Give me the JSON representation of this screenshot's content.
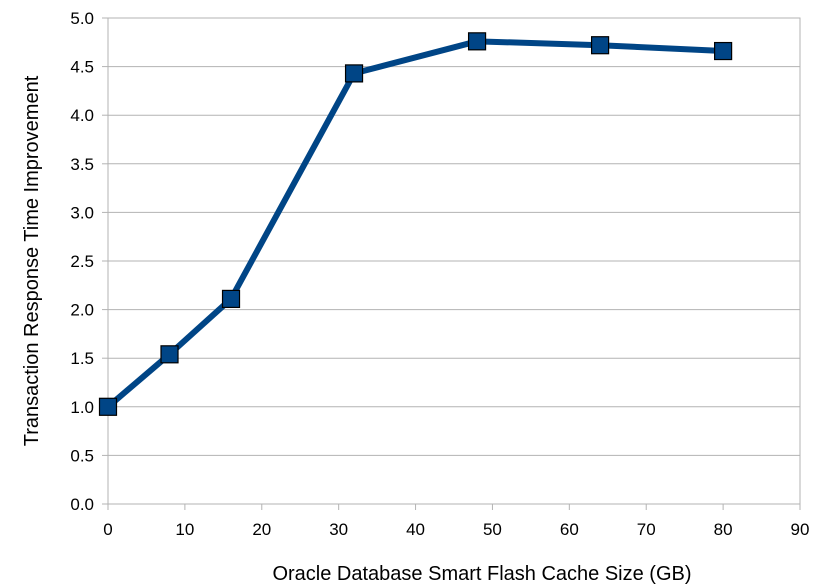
{
  "chart_data": {
    "type": "line",
    "title": "",
    "xlabel": "Oracle Database Smart Flash Cache Size (GB)",
    "ylabel": "Transaction Response Time Improvement",
    "xlim": [
      0,
      90
    ],
    "ylim": [
      0,
      5
    ],
    "xticks": [
      0,
      10,
      20,
      30,
      40,
      50,
      60,
      70,
      80,
      90
    ],
    "xtick_labels": [
      "0",
      "10",
      "20",
      "30",
      "40",
      "50",
      "60",
      "70",
      "80",
      "90"
    ],
    "yticks": [
      0,
      0.5,
      1,
      1.5,
      2,
      2.5,
      3,
      3.5,
      4,
      4.5,
      5
    ],
    "ytick_labels": [
      "0.0",
      "0.5",
      "1.0",
      "1.5",
      "2.0",
      "2.5",
      "3.0",
      "3.5",
      "4.0",
      "4.5",
      "5.0"
    ],
    "grid": "horizontal",
    "legend": "none",
    "series": [
      {
        "x": [
          0,
          8,
          16,
          32,
          48,
          64,
          80
        ],
        "values": [
          1.0,
          1.54,
          2.11,
          4.43,
          4.76,
          4.72,
          4.66
        ],
        "color": "#004586",
        "marker": "square"
      }
    ],
    "colors": {
      "line": "#004586",
      "marker_fill": "#004586",
      "marker_stroke": "#000000",
      "grid": "#b3b3b3",
      "axis": "#b3b3b3"
    }
  }
}
